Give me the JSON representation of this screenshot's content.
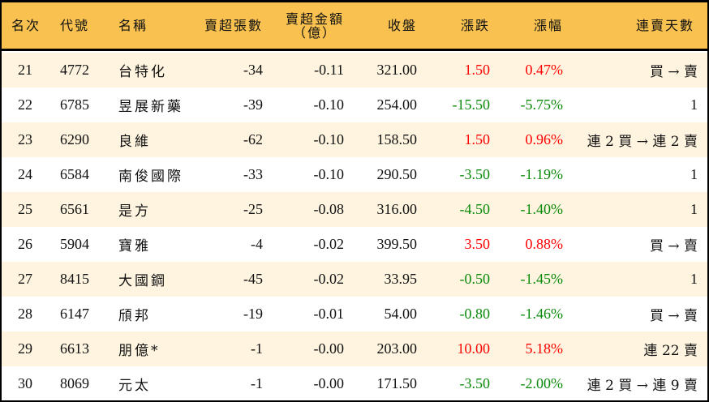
{
  "headers": {
    "rank": "名次",
    "code": "代號",
    "name": "名稱",
    "shares": "賣超張數",
    "amount_l1": "賣超金額",
    "amount_l2": "（億）",
    "close": "收盤",
    "change": "漲跌",
    "pct": "漲幅",
    "days": "連賣天數"
  },
  "colors": {
    "header": "#F8C150",
    "row_alt": "#FEF4DF",
    "up": "#ff0000",
    "down": "#0a8a0a"
  },
  "rows": [
    {
      "rank": "21",
      "code": "4772",
      "name": "台特化",
      "shares": "-34",
      "amount": "-0.11",
      "close": "321.00",
      "change": "1.50",
      "pct": "0.47%",
      "days": "買 → 賣",
      "dir": "up"
    },
    {
      "rank": "22",
      "code": "6785",
      "name": "昱展新藥",
      "shares": "-39",
      "amount": "-0.10",
      "close": "254.00",
      "change": "-15.50",
      "pct": "-5.75%",
      "days": "1",
      "dir": "down"
    },
    {
      "rank": "23",
      "code": "6290",
      "name": "良維",
      "shares": "-62",
      "amount": "-0.10",
      "close": "158.50",
      "change": "1.50",
      "pct": "0.96%",
      "days": "連 2 買 → 連 2 賣",
      "dir": "up"
    },
    {
      "rank": "24",
      "code": "6584",
      "name": "南俊國際",
      "shares": "-33",
      "amount": "-0.10",
      "close": "290.50",
      "change": "-3.50",
      "pct": "-1.19%",
      "days": "1",
      "dir": "down"
    },
    {
      "rank": "25",
      "code": "6561",
      "name": "是方",
      "shares": "-25",
      "amount": "-0.08",
      "close": "316.00",
      "change": "-4.50",
      "pct": "-1.40%",
      "days": "1",
      "dir": "down"
    },
    {
      "rank": "26",
      "code": "5904",
      "name": "寶雅",
      "shares": "-4",
      "amount": "-0.02",
      "close": "399.50",
      "change": "3.50",
      "pct": "0.88%",
      "days": "買 → 賣",
      "dir": "up"
    },
    {
      "rank": "27",
      "code": "8415",
      "name": "大國鋼",
      "shares": "-45",
      "amount": "-0.02",
      "close": "33.95",
      "change": "-0.50",
      "pct": "-1.45%",
      "days": "1",
      "dir": "down"
    },
    {
      "rank": "28",
      "code": "6147",
      "name": "頎邦",
      "shares": "-19",
      "amount": "-0.01",
      "close": "54.00",
      "change": "-0.80",
      "pct": "-1.46%",
      "days": "買 → 賣",
      "dir": "down"
    },
    {
      "rank": "29",
      "code": "6613",
      "name": "朋億*",
      "shares": "-1",
      "amount": "-0.00",
      "close": "203.00",
      "change": "10.00",
      "pct": "5.18%",
      "days": "連 22 賣",
      "dir": "up"
    },
    {
      "rank": "30",
      "code": "8069",
      "name": "元太",
      "shares": "-1",
      "amount": "-0.00",
      "close": "171.50",
      "change": "-3.50",
      "pct": "-2.00%",
      "days": "連 2 買 → 連 9 賣",
      "dir": "down"
    }
  ]
}
